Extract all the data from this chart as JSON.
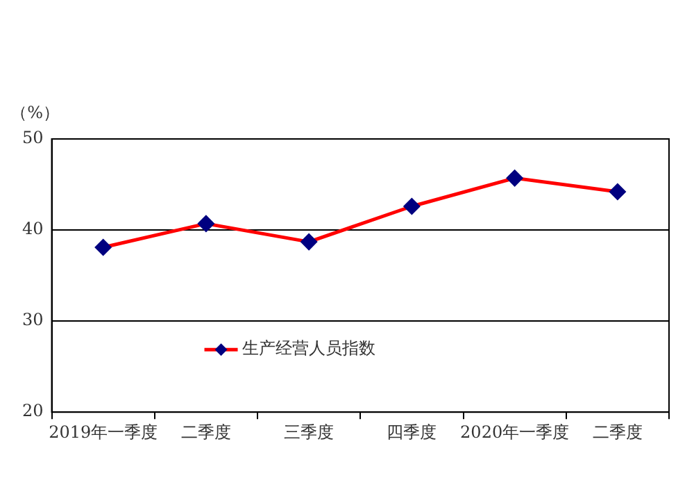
{
  "chart_data": {
    "type": "line",
    "ylabel": "（%）",
    "categories": [
      "2019年一季度",
      "二季度",
      "三季度",
      "四季度",
      "2020年一季度",
      "二季度"
    ],
    "series": [
      {
        "name": "生产经营人员指数",
        "color": "#ff0000",
        "values": [
          38.1,
          40.7,
          38.7,
          42.6,
          45.7,
          44.2
        ]
      }
    ],
    "ylim": [
      20,
      50
    ],
    "yticks": [
      20,
      30,
      40,
      50
    ],
    "grid": "y",
    "legend": "bottom left",
    "marker": "diamond",
    "line_style": "solid"
  }
}
